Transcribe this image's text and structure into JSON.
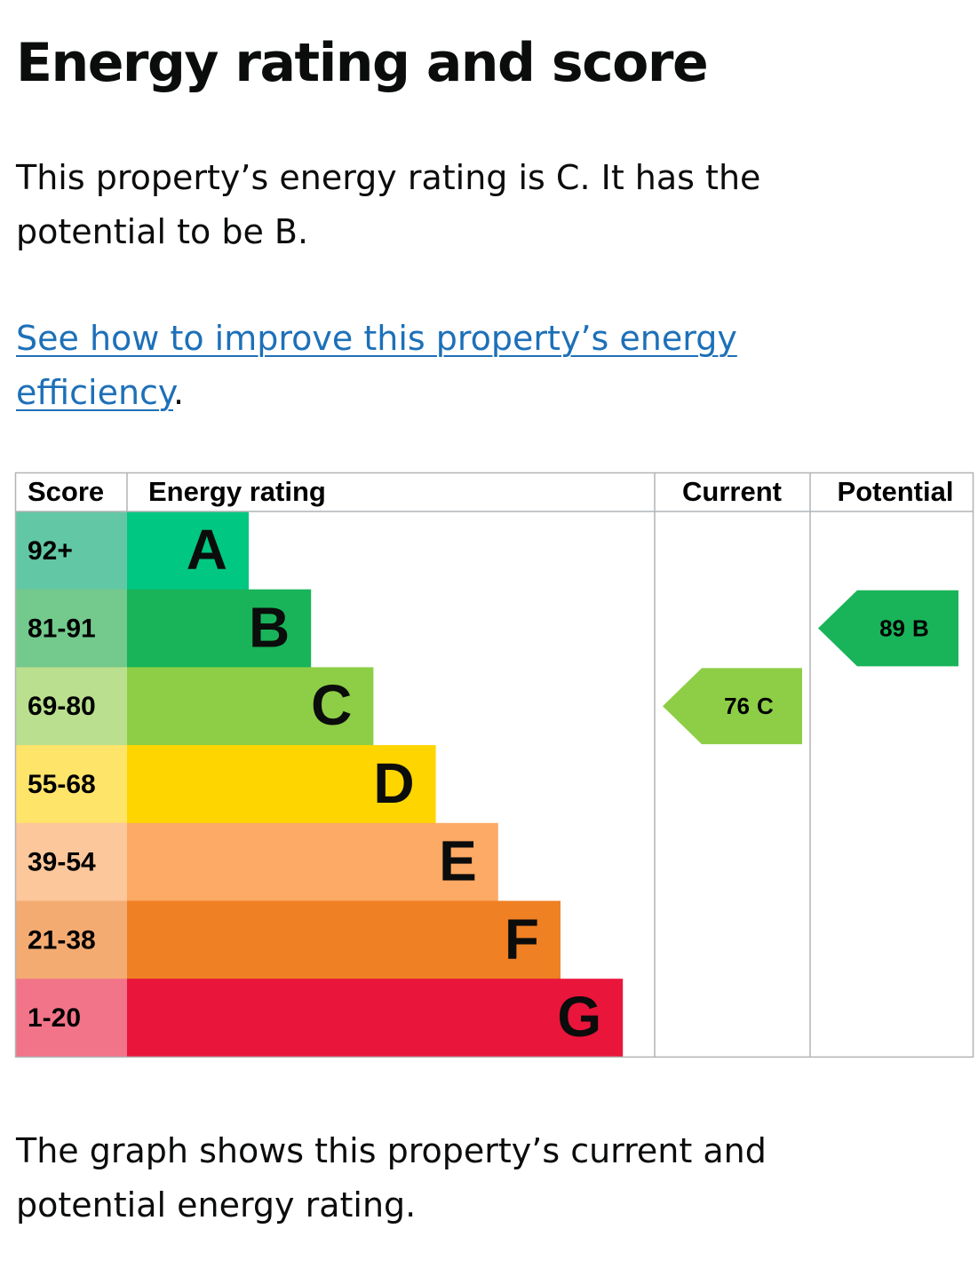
{
  "heading": "Energy rating and score",
  "summary": "This property’s energy rating is C. It has the potential to be B.",
  "link": {
    "text": "See how to improve this property’s energy efficiency",
    "suffix": "."
  },
  "table": {
    "headers": [
      "Score",
      "Energy rating",
      "Current",
      "Potential"
    ],
    "rows": [
      {
        "score": "92+",
        "band": "A",
        "color": "#00c781",
        "score_color": "#62c7a4"
      },
      {
        "score": "81-91",
        "band": "B",
        "color": "#19b459",
        "score_color": "#74c98c"
      },
      {
        "score": "69-80",
        "band": "C",
        "color": "#8dce46",
        "score_color": "#badf8e"
      },
      {
        "score": "55-68",
        "band": "D",
        "color": "#ffd500",
        "score_color": "#ffe46a"
      },
      {
        "score": "39-54",
        "band": "E",
        "color": "#fcaa65",
        "score_color": "#fdc79c"
      },
      {
        "score": "21-38",
        "band": "F",
        "color": "#ef8023",
        "score_color": "#f4ab72"
      },
      {
        "score": "1-20",
        "band": "G",
        "color": "#e9153b",
        "score_color": "#f27489"
      }
    ],
    "current": {
      "score": 76,
      "band": "C"
    },
    "potential": {
      "score": 89,
      "band": "B"
    }
  },
  "footer": "The graph shows this property’s current and potential energy rating."
}
